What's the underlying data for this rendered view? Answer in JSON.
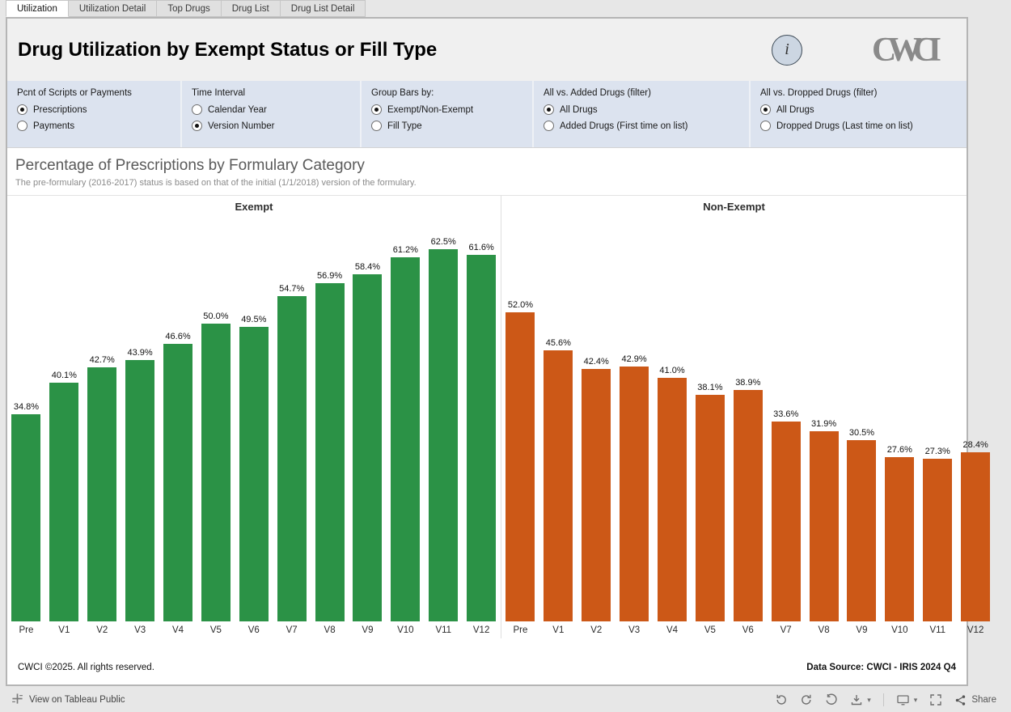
{
  "tabbar": {
    "tabs": [
      "Utilization",
      "Utilization Detail",
      "Top Drugs",
      "Drug List",
      "Drug List Detail"
    ],
    "active_index": 0
  },
  "header": {
    "title": "Drug Utilization by Exempt Status or Fill Type",
    "info_glyph": "i",
    "logo_text": "CWCI"
  },
  "filters": [
    {
      "title": "Pcnt of Scripts or Payments",
      "options": [
        {
          "label": "Prescriptions",
          "selected": true
        },
        {
          "label": "Payments",
          "selected": false
        }
      ]
    },
    {
      "title": "Time Interval",
      "options": [
        {
          "label": "Calendar Year",
          "selected": false
        },
        {
          "label": "Version Number",
          "selected": true
        }
      ]
    },
    {
      "title": "Group Bars by:",
      "options": [
        {
          "label": "Exempt/Non-Exempt",
          "selected": true
        },
        {
          "label": "Fill Type",
          "selected": false
        }
      ]
    },
    {
      "title": "All vs. Added Drugs (filter)",
      "options": [
        {
          "label": "All Drugs",
          "selected": true
        },
        {
          "label": "Added Drugs (First time on list)",
          "selected": false
        }
      ]
    },
    {
      "title": "All vs. Dropped Drugs (filter)",
      "options": [
        {
          "label": "All Drugs",
          "selected": true
        },
        {
          "label": "Dropped Drugs (Last time on list)",
          "selected": false
        }
      ]
    }
  ],
  "chart_data": {
    "type": "bar",
    "title": "Percentage of Prescriptions by Formulary Category",
    "subtitle": "The pre-formulary (2016-2017) status is based on that of the initial  (1/1/2018) version of the formulary.",
    "categories": [
      "Pre",
      "V1",
      "V2",
      "V3",
      "V4",
      "V5",
      "V6",
      "V7",
      "V8",
      "V9",
      "V10",
      "V11",
      "V12"
    ],
    "series": [
      {
        "name": "Exempt",
        "color": "#2b9246",
        "values": [
          34.8,
          40.1,
          42.7,
          43.9,
          46.6,
          50.0,
          49.5,
          54.7,
          56.9,
          58.4,
          61.2,
          62.5,
          61.6
        ]
      },
      {
        "name": "Non-Exempt",
        "color": "#cc5817",
        "values": [
          52.0,
          45.6,
          42.4,
          42.9,
          41.0,
          38.1,
          38.9,
          33.6,
          31.9,
          30.5,
          27.6,
          27.3,
          28.4
        ]
      }
    ],
    "value_format": "percent",
    "ylim": [
      0,
      68
    ],
    "grid": false,
    "legend": "none",
    "layout_note": "last Non-Exempt bar (V12) is clipped at the right edge of the view"
  },
  "footer": {
    "left": "CWCI ©2025. All rights reserved.",
    "right": "Data Source: CWCI - IRIS 2024 Q4"
  },
  "tableau_bar": {
    "view_label": "View on Tableau Public",
    "share_label": "Share",
    "icons": [
      "tableau-logo-icon",
      "undo-icon",
      "redo-icon",
      "reset-icon",
      "download-icon",
      "caret-down-icon",
      "device-preview-icon",
      "fullscreen-icon",
      "share-icon"
    ]
  }
}
